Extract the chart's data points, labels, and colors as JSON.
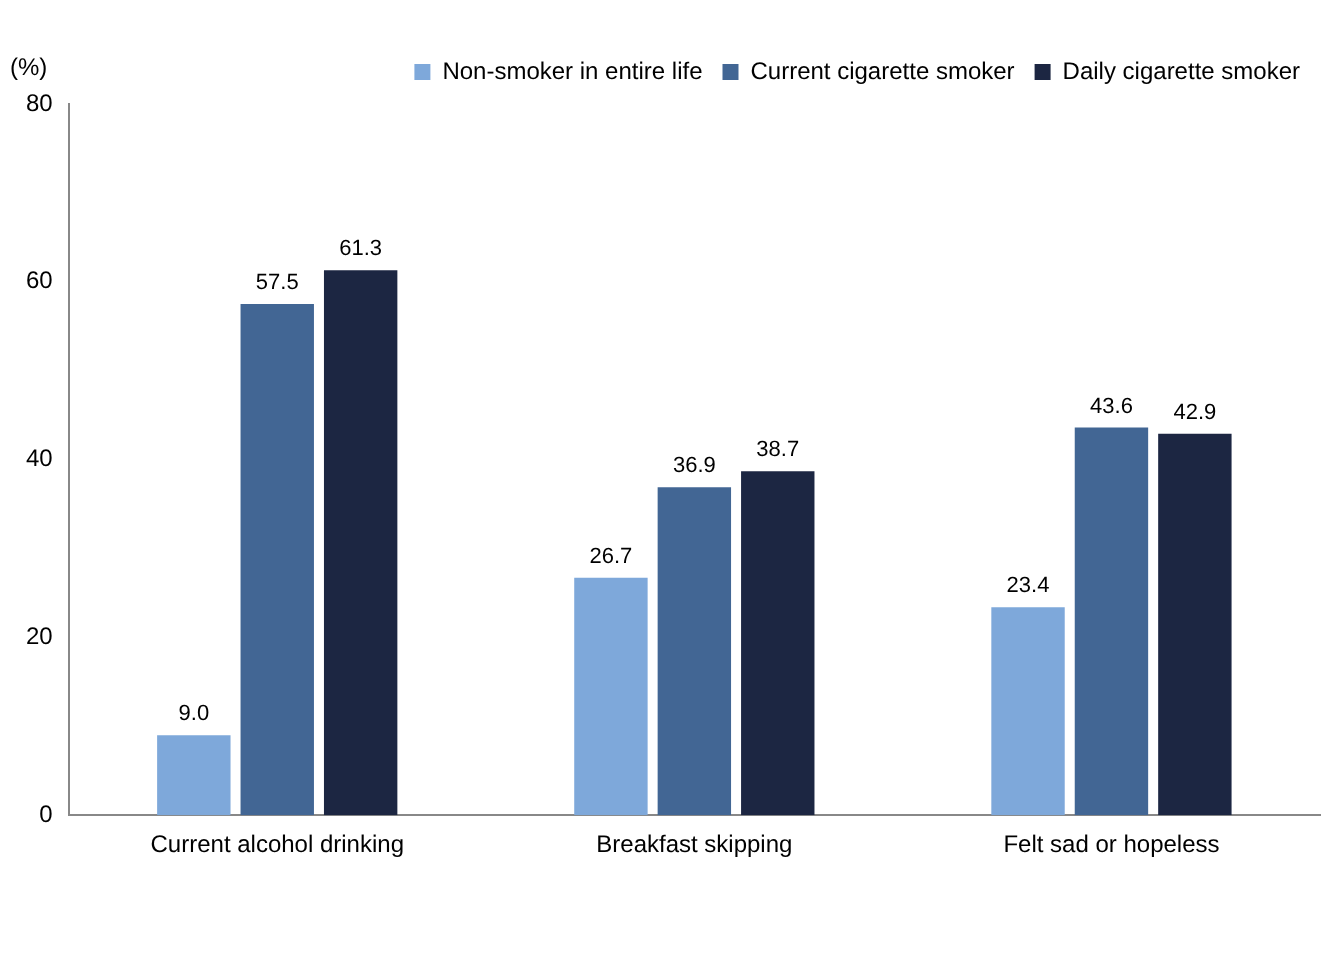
{
  "chart_data": {
    "type": "bar",
    "ylabel": "(%)",
    "categories": [
      "Current alcohol drinking",
      "Breakfast skipping",
      "Felt sad or hopeless"
    ],
    "series": [
      {
        "name": "Non-smoker in entire life",
        "color": "#7ea8da",
        "values": [
          9.0,
          26.7,
          23.4
        ],
        "value_labels": [
          "9.0",
          "26.7",
          "23.4"
        ]
      },
      {
        "name": "Current cigarette smoker",
        "color": "#426694",
        "values": [
          57.5,
          36.9,
          43.6
        ],
        "value_labels": [
          "57.5",
          "36.9",
          "43.6"
        ]
      },
      {
        "name": "Daily cigarette smoker",
        "color": "#1c2642",
        "values": [
          61.3,
          38.7,
          42.9
        ],
        "value_labels": [
          "61.3",
          "38.7",
          "42.9"
        ]
      }
    ],
    "ylim": [
      0,
      80
    ],
    "yticks": [
      0,
      20,
      40,
      60,
      80
    ],
    "grid": false,
    "legend": "top right"
  }
}
